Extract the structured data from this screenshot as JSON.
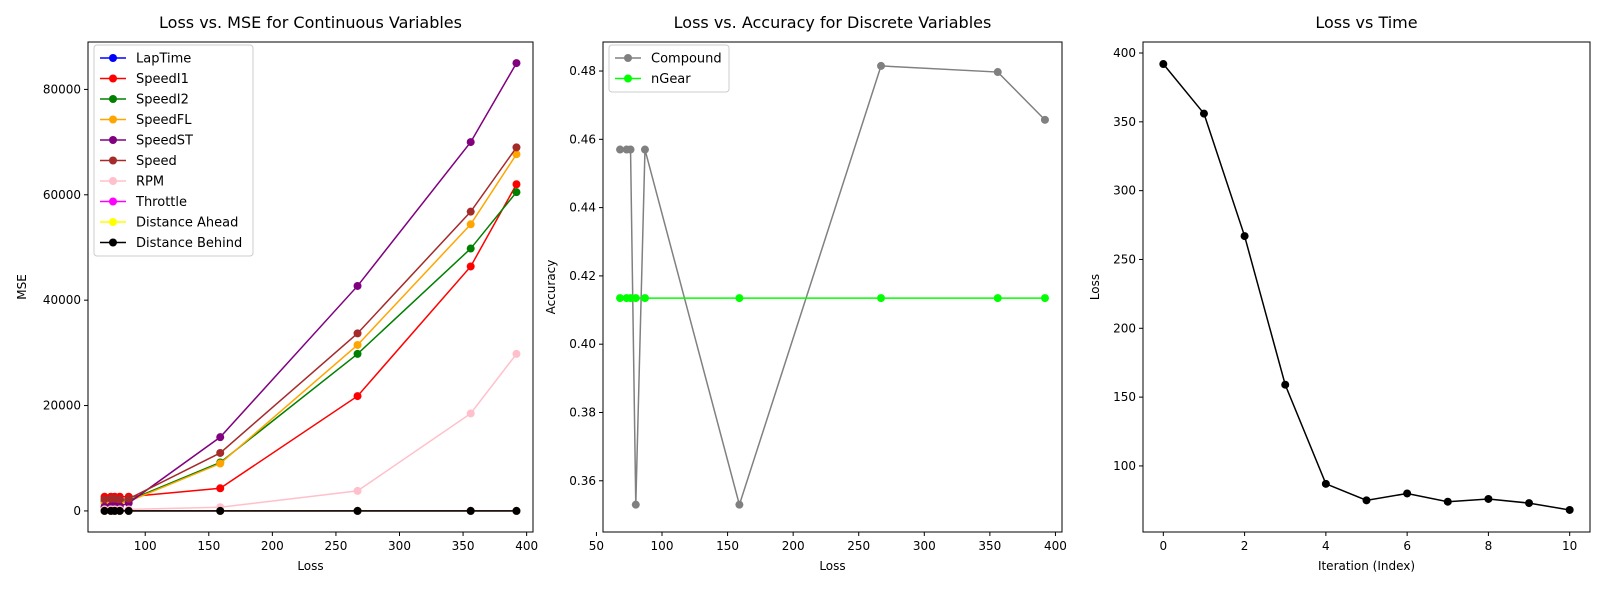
{
  "chart_data": [
    {
      "type": "line",
      "title": "Loss vs. MSE for Continuous Variables",
      "xlabel": "Loss",
      "ylabel": "MSE",
      "xlim": [
        55,
        405
      ],
      "ylim": [
        -4000,
        89000
      ],
      "xticks": [
        100,
        150,
        200,
        250,
        300,
        350,
        400
      ],
      "yticks": [
        0,
        20000,
        40000,
        60000,
        80000
      ],
      "legend": "upper-left",
      "x": [
        68,
        73,
        76,
        80,
        87,
        159,
        267,
        356,
        392
      ],
      "series": [
        {
          "name": "LapTime",
          "color": "#0000ff",
          "values": [
            0,
            0,
            0,
            0,
            0,
            0,
            0,
            0,
            0
          ]
        },
        {
          "name": "SpeedI1",
          "color": "#ff0000",
          "values": [
            2700,
            2700,
            2700,
            2700,
            2700,
            4300,
            21800,
            46400,
            62000
          ]
        },
        {
          "name": "SpeedI2",
          "color": "#008000",
          "values": [
            1800,
            1900,
            2000,
            1800,
            2000,
            9200,
            29800,
            49800,
            60500
          ]
        },
        {
          "name": "SpeedFL",
          "color": "#ffa500",
          "values": [
            1500,
            1600,
            1700,
            1500,
            1800,
            9000,
            31500,
            54400,
            67700
          ]
        },
        {
          "name": "SpeedST",
          "color": "#800080",
          "values": [
            800,
            900,
            1000,
            900,
            1500,
            14000,
            42700,
            70000,
            85000
          ]
        },
        {
          "name": "Speed",
          "color": "#a52a2a",
          "values": [
            2200,
            2300,
            2300,
            2200,
            2300,
            11000,
            33700,
            56800,
            69000
          ]
        },
        {
          "name": "RPM",
          "color": "#ffc0cb",
          "values": [
            300,
            300,
            300,
            300,
            300,
            700,
            3800,
            18500,
            29800
          ]
        },
        {
          "name": "Throttle",
          "color": "#ff00ff",
          "values": [
            0,
            0,
            0,
            0,
            0,
            0,
            0,
            0,
            0
          ]
        },
        {
          "name": "Distance Ahead",
          "color": "#ffff00",
          "values": [
            0,
            0,
            0,
            0,
            0,
            0,
            0,
            0,
            0
          ]
        },
        {
          "name": "Distance Behind",
          "color": "#000000",
          "values": [
            0,
            0,
            0,
            0,
            0,
            0,
            0,
            0,
            0
          ]
        }
      ]
    },
    {
      "type": "line",
      "title": "Loss vs. Accuracy for Discrete Variables",
      "xlabel": "Loss",
      "ylabel": "Accuracy",
      "xlim": [
        55,
        405
      ],
      "ylim": [
        0.345,
        0.4885
      ],
      "xticks": [
        50,
        100,
        150,
        200,
        250,
        300,
        350,
        400
      ],
      "yticks": [
        0.36,
        0.38,
        0.4,
        0.42,
        0.44,
        0.46,
        0.48
      ],
      "legend": "upper-left",
      "series": [
        {
          "name": "Compound",
          "color": "#808080",
          "x": [
            68,
            73,
            76,
            80,
            87,
            159,
            267,
            356,
            392
          ],
          "values": [
            0.457,
            0.457,
            0.457,
            0.353,
            0.457,
            0.353,
            0.4815,
            0.4797,
            0.4657
          ]
        },
        {
          "name": "nGear",
          "color": "#00ff00",
          "x": [
            68,
            73,
            76,
            80,
            87,
            159,
            267,
            356,
            392
          ],
          "values": [
            0.4135,
            0.4135,
            0.4135,
            0.4135,
            0.4135,
            0.4135,
            0.4135,
            0.4135,
            0.4135
          ]
        }
      ]
    },
    {
      "type": "line",
      "title": "Loss vs Time",
      "xlabel": "Iteration (Index)",
      "ylabel": "Loss",
      "xlim": [
        -0.5,
        10.5
      ],
      "ylim": [
        52,
        408
      ],
      "xticks": [
        0,
        2,
        4,
        6,
        8,
        10
      ],
      "yticks": [
        100,
        150,
        200,
        250,
        300,
        350,
        400
      ],
      "x": [
        0,
        1,
        2,
        3,
        4,
        5,
        6,
        7,
        8,
        9,
        10
      ],
      "series": [
        {
          "name": "",
          "color": "#000000",
          "values": [
            392,
            356,
            267,
            159,
            87,
            75,
            80,
            74,
            76,
            73,
            68
          ]
        }
      ]
    }
  ]
}
